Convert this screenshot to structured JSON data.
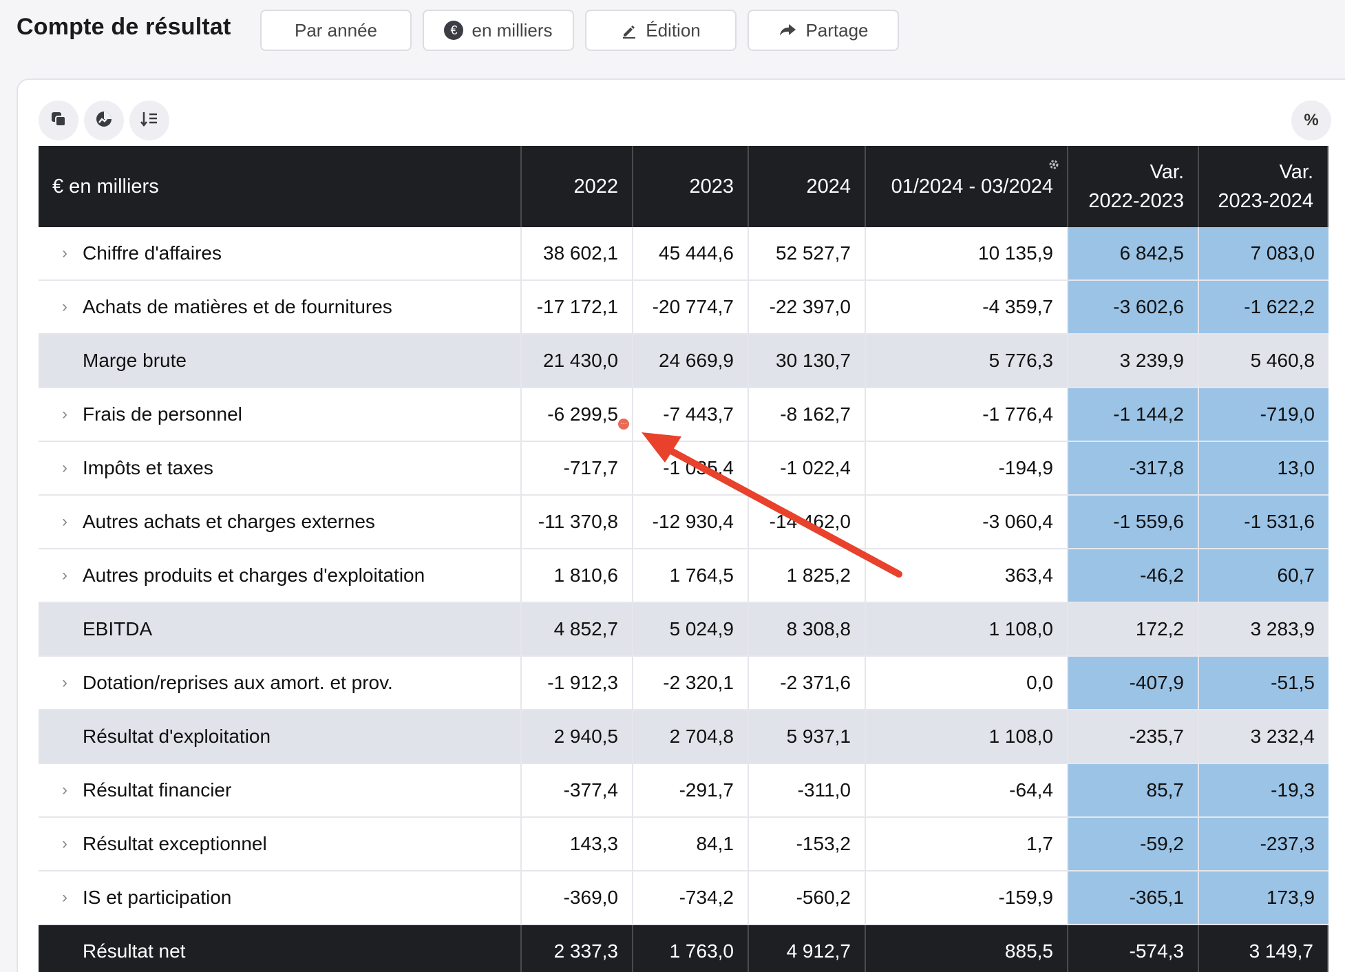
{
  "header": {
    "title": "Compte de résultat",
    "buttons": {
      "period": "Par année",
      "unit": "en milliers",
      "edit": "Édition",
      "share": "Partage"
    }
  },
  "toolbar": {
    "percent_label": "%"
  },
  "table": {
    "columns": [
      "€ en milliers",
      "2022",
      "2023",
      "2024",
      "01/2024 - 03/2024",
      "Var.",
      "Var."
    ],
    "var_periods": [
      "2022-2023",
      "2023-2024"
    ],
    "rows": [
      {
        "label": "Chiffre d'affaires",
        "values": [
          "38 602,1",
          "45 444,6",
          "52 527,7",
          "10 135,9",
          "6 842,5",
          "7 083,0"
        ]
      },
      {
        "label": "Achats de matières et de fournitures",
        "values": [
          "-17 172,1",
          "-20 774,7",
          "-22 397,0",
          "-4 359,7",
          "-3 602,6",
          "-1 622,2"
        ]
      },
      {
        "label": "Marge brute",
        "values": [
          "21 430,0",
          "24 669,9",
          "30 130,7",
          "5 776,3",
          "3 239,9",
          "5 460,8"
        ]
      },
      {
        "label": "Frais de personnel",
        "values": [
          "-6 299,5",
          "-7 443,7",
          "-8 162,7",
          "-1 776,4",
          "-1 144,2",
          "-719,0"
        ]
      },
      {
        "label": "Impôts et taxes",
        "values": [
          "-717,7",
          "-1 035,4",
          "-1 022,4",
          "-194,9",
          "-317,8",
          "13,0"
        ]
      },
      {
        "label": "Autres achats et charges externes",
        "values": [
          "-11 370,8",
          "-12 930,4",
          "-14 462,0",
          "-3 060,4",
          "-1 559,6",
          "-1 531,6"
        ]
      },
      {
        "label": "Autres produits et charges d'exploitation",
        "values": [
          "1 810,6",
          "1 764,5",
          "1 825,2",
          "363,4",
          "-46,2",
          "60,7"
        ]
      },
      {
        "label": "EBITDA",
        "values": [
          "4 852,7",
          "5 024,9",
          "8 308,8",
          "1 108,0",
          "172,2",
          "3 283,9"
        ]
      },
      {
        "label": "Dotation/reprises aux amort. et prov.",
        "values": [
          "-1 912,3",
          "-2 320,1",
          "-2 371,6",
          "0,0",
          "-407,9",
          "-51,5"
        ]
      },
      {
        "label": "Résultat d'exploitation",
        "values": [
          "2 940,5",
          "2 704,8",
          "5 937,1",
          "1 108,0",
          "-235,7",
          "3 232,4"
        ]
      },
      {
        "label": "Résultat financier",
        "values": [
          "-377,4",
          "-291,7",
          "-311,0",
          "-64,4",
          "85,7",
          "-19,3"
        ]
      },
      {
        "label": "Résultat exceptionnel",
        "values": [
          "143,3",
          "84,1",
          "-153,2",
          "1,7",
          "-59,2",
          "-237,3"
        ]
      },
      {
        "label": "IS et participation",
        "values": [
          "-369,0",
          "-734,2",
          "-560,2",
          "-159,9",
          "-365,1",
          "173,9"
        ]
      },
      {
        "label": "Résultat net",
        "values": [
          "2 337,3",
          "1 763,0",
          "4 912,7",
          "885,5",
          "-574,3",
          "3 149,7"
        ]
      }
    ]
  },
  "colors": {
    "header_bg": "#1e1f22",
    "subtotal_bg": "#e1e3ea",
    "variance_bg": "#9ac3e6",
    "annotation_arrow": "#e8412c"
  }
}
